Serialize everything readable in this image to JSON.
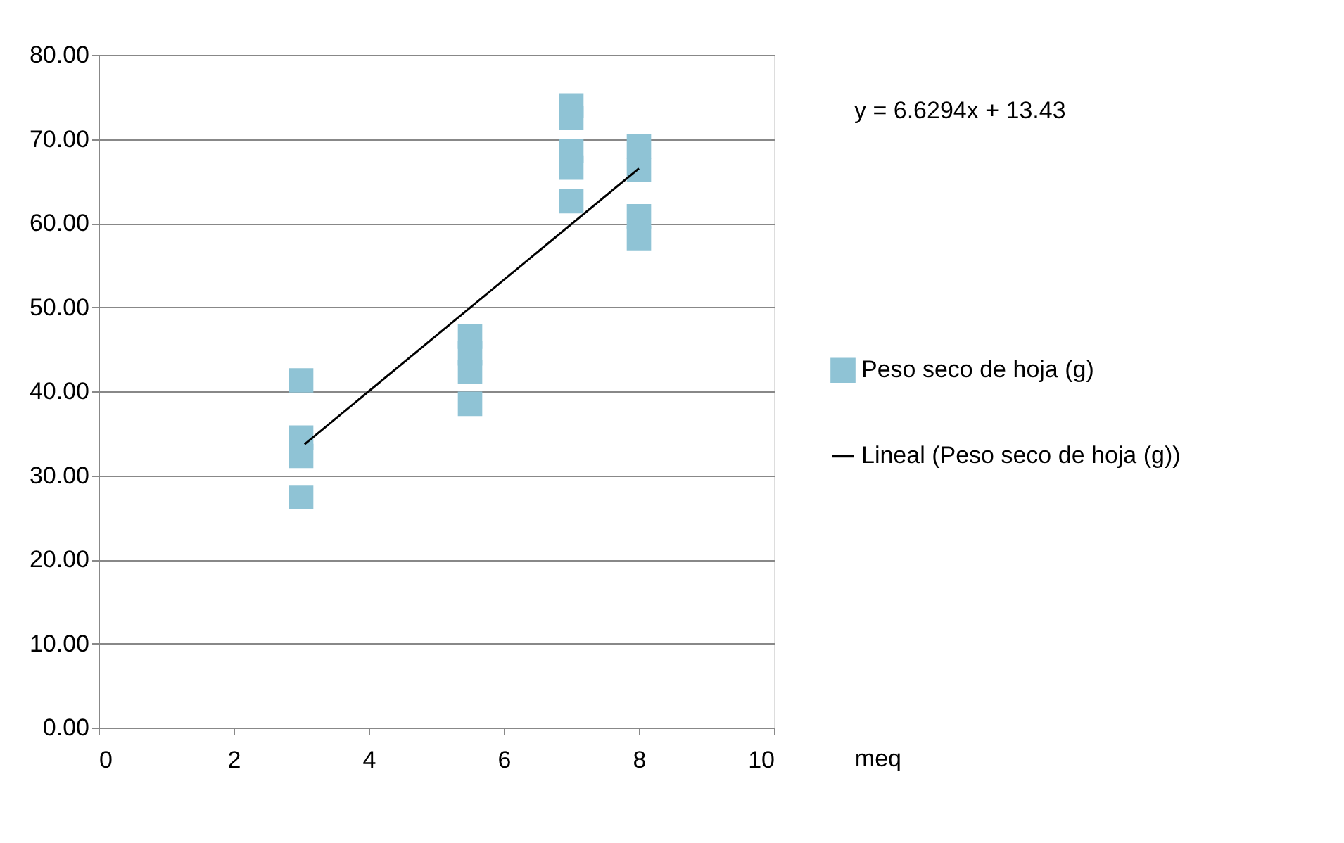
{
  "chart_data": {
    "type": "scatter",
    "xlabel": "meq",
    "annotations": [
      "y = 6.6294x + 13.43"
    ],
    "xlim": [
      0,
      10
    ],
    "xticks": [
      0,
      2,
      4,
      6,
      8,
      10
    ],
    "ylim": [
      0,
      80
    ],
    "yticks": [
      {
        "value": 0,
        "label": "0.00"
      },
      {
        "value": 10,
        "label": "10.00"
      },
      {
        "value": 20,
        "label": "20.00"
      },
      {
        "value": 30,
        "label": "30.00"
      },
      {
        "value": 40,
        "label": "40.00"
      },
      {
        "value": 50,
        "label": "50.00"
      },
      {
        "value": 60,
        "label": "60.00"
      },
      {
        "value": 70,
        "label": "70.00"
      },
      {
        "value": 80,
        "label": "80.00"
      }
    ],
    "grid": "y",
    "legend": "right",
    "series": [
      {
        "name": "Peso seco de hoja (g)",
        "color": "#8fc3d5",
        "marker": "square",
        "x": [
          3,
          3,
          3,
          3,
          5.5,
          5.5,
          5.5,
          5.5,
          7,
          7,
          7,
          7,
          7,
          8,
          8,
          8,
          8
        ],
        "values": [
          41.3,
          34.5,
          32.3,
          27.4,
          46.5,
          44.5,
          42.3,
          38.5,
          74,
          72.5,
          68.6,
          66.6,
          62.6,
          69.1,
          66.3,
          60.8,
          58.2
        ]
      },
      {
        "name": "Lineal (Peso seco de hoja (g))",
        "type": "line",
        "color": "#000000",
        "x": [
          3.05,
          8
        ],
        "values": [
          33.7,
          66.5
        ]
      }
    ]
  }
}
